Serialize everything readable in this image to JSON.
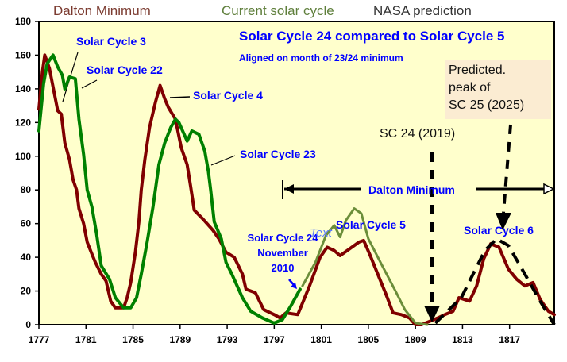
{
  "legend": {
    "dalton": {
      "label": "Dalton Minimum",
      "color": "#7b3b30"
    },
    "current": {
      "label": "Current solar cycle",
      "color": "#5f7f3c"
    },
    "nasa": {
      "label": "NASA prediction",
      "color": "#333333"
    }
  },
  "chart_data": {
    "type": "line",
    "title": "Solar Cycle 24 compared to Solar Cycle 5",
    "subtitle": "Aligned on month of 23/24 minimum",
    "xlabel": "",
    "ylabel": "",
    "xlim": [
      1777,
      1820.8
    ],
    "ylim": [
      0,
      180
    ],
    "x_ticks": [
      "1777",
      "1781",
      "1785",
      "1789",
      "1793",
      "1797",
      "1801",
      "1805",
      "1809",
      "1813",
      "1817"
    ],
    "y_ticks": [
      "0",
      "20",
      "40",
      "60",
      "80",
      "100",
      "120",
      "140",
      "160",
      "180"
    ],
    "grid": false,
    "series": [
      {
        "name": "Dalton Minimum",
        "color": "#800000",
        "points": [
          [
            1777.0,
            128
          ],
          [
            1777.3,
            150
          ],
          [
            1777.5,
            160
          ],
          [
            1777.9,
            152
          ],
          [
            1778.6,
            127
          ],
          [
            1778.9,
            125
          ],
          [
            1779.2,
            108
          ],
          [
            1779.6,
            98
          ],
          [
            1779.9,
            86
          ],
          [
            1780.2,
            80
          ],
          [
            1780.4,
            69
          ],
          [
            1780.8,
            60
          ],
          [
            1781.1,
            49
          ],
          [
            1781.5,
            42
          ],
          [
            1781.8,
            37
          ],
          [
            1782.3,
            30
          ],
          [
            1782.7,
            26
          ],
          [
            1783.1,
            14
          ],
          [
            1783.5,
            10
          ],
          [
            1784.2,
            10
          ],
          [
            1784.5,
            16
          ],
          [
            1784.8,
            25
          ],
          [
            1785.2,
            43
          ],
          [
            1785.5,
            61
          ],
          [
            1785.7,
            80
          ],
          [
            1786.0,
            98
          ],
          [
            1786.4,
            117
          ],
          [
            1786.9,
            132
          ],
          [
            1787.3,
            142
          ],
          [
            1787.7,
            134
          ],
          [
            1788.0,
            129
          ],
          [
            1788.6,
            122
          ],
          [
            1789.1,
            105
          ],
          [
            1789.6,
            95
          ],
          [
            1789.9,
            82
          ],
          [
            1790.2,
            68
          ],
          [
            1790.9,
            63
          ],
          [
            1791.8,
            56
          ],
          [
            1792.3,
            51
          ],
          [
            1792.9,
            43
          ],
          [
            1793.6,
            40
          ],
          [
            1794.3,
            30
          ],
          [
            1794.6,
            21
          ],
          [
            1795.4,
            19
          ],
          [
            1796.1,
            9
          ],
          [
            1797.0,
            6
          ],
          [
            1797.5,
            4
          ],
          [
            1798.0,
            7
          ],
          [
            1799.0,
            6
          ],
          [
            1800.0,
            23
          ],
          [
            1800.9,
            40
          ],
          [
            1801.5,
            46
          ],
          [
            1802.1,
            44
          ],
          [
            1802.6,
            41
          ],
          [
            1803.4,
            45
          ],
          [
            1804.2,
            49
          ],
          [
            1804.6,
            50
          ],
          [
            1805.1,
            42
          ],
          [
            1805.8,
            30
          ],
          [
            1806.5,
            18
          ],
          [
            1807.1,
            7
          ],
          [
            1807.8,
            6
          ],
          [
            1808.5,
            4
          ],
          [
            1809.0,
            0
          ],
          [
            1809.5,
            0
          ],
          [
            1810.2,
            2
          ],
          [
            1810.9,
            4
          ],
          [
            1811.5,
            6
          ],
          [
            1812.2,
            8
          ],
          [
            1812.7,
            16
          ],
          [
            1813.6,
            14
          ],
          [
            1814.2,
            23
          ],
          [
            1814.8,
            39
          ],
          [
            1815.4,
            48
          ],
          [
            1816.1,
            46
          ],
          [
            1816.9,
            33
          ],
          [
            1817.6,
            27
          ],
          [
            1818.3,
            23
          ],
          [
            1819.0,
            25
          ],
          [
            1819.6,
            15
          ],
          [
            1820.3,
            8
          ],
          [
            1820.8,
            6
          ]
        ]
      },
      {
        "name": "",
        "color": "#008000",
        "points": [
          [
            1777.0,
            115
          ],
          [
            1777.4,
            143
          ],
          [
            1777.7,
            155
          ],
          [
            1778.2,
            160
          ],
          [
            1778.6,
            153
          ],
          [
            1779.0,
            148
          ],
          [
            1779.2,
            140
          ],
          [
            1779.6,
            147
          ],
          [
            1780.1,
            146
          ],
          [
            1780.4,
            122
          ],
          [
            1780.8,
            101
          ],
          [
            1781.1,
            80
          ],
          [
            1781.5,
            70
          ],
          [
            1781.9,
            54
          ],
          [
            1782.3,
            35
          ],
          [
            1783.0,
            27
          ],
          [
            1783.5,
            16
          ],
          [
            1784.2,
            10
          ],
          [
            1784.8,
            10
          ],
          [
            1785.3,
            16
          ],
          [
            1785.7,
            30
          ],
          [
            1786.2,
            49
          ],
          [
            1786.7,
            70
          ],
          [
            1787.2,
            95
          ],
          [
            1787.7,
            108
          ],
          [
            1788.2,
            117
          ],
          [
            1788.6,
            122
          ],
          [
            1788.9,
            120
          ],
          [
            1789.6,
            109
          ],
          [
            1790.0,
            115
          ],
          [
            1790.6,
            113
          ],
          [
            1791.1,
            103
          ],
          [
            1791.4,
            91
          ],
          [
            1791.6,
            80
          ],
          [
            1791.9,
            61
          ],
          [
            1792.5,
            51
          ],
          [
            1792.9,
            37
          ],
          [
            1793.4,
            30
          ],
          [
            1794.3,
            16
          ],
          [
            1795.0,
            8
          ],
          [
            1796.0,
            4
          ],
          [
            1797.0,
            1
          ],
          [
            1797.7,
            3
          ],
          [
            1798.4,
            11
          ],
          [
            1799.2,
            21
          ]
        ]
      },
      {
        "name": "Current solar cycle",
        "color": "#6b8e3a",
        "points": [
          [
            1799.4,
            23
          ],
          [
            1800.5,
            37
          ],
          [
            1801.4,
            53
          ],
          [
            1802.1,
            59
          ],
          [
            1802.6,
            52
          ],
          [
            1803.1,
            62
          ],
          [
            1803.8,
            69
          ],
          [
            1804.4,
            66
          ],
          [
            1805.0,
            51
          ],
          [
            1806.1,
            36
          ],
          [
            1807.3,
            20
          ],
          [
            1808.1,
            9
          ],
          [
            1809.0,
            1
          ],
          [
            1810.0,
            0
          ]
        ]
      },
      {
        "name": "NASA prediction",
        "color": "#000000",
        "dashed": true,
        "points": [
          [
            1810.7,
            1
          ],
          [
            1812.9,
            16
          ],
          [
            1814.9,
            44
          ],
          [
            1815.9,
            51
          ],
          [
            1816.9,
            47
          ],
          [
            1818.3,
            30
          ],
          [
            1819.6,
            14
          ],
          [
            1820.8,
            0
          ]
        ]
      }
    ],
    "annotations": {
      "sc3": "Solar Cycle 3",
      "sc22": "Solar Cycle 22",
      "sc4": "Solar Cycle 4",
      "sc23": "Solar Cycle 23",
      "sc24": "Solar Cycle 24",
      "sc24_date": "November",
      "sc24_year": "2010",
      "text_placeholder": "Text",
      "sc5": "Solar Cycle 5",
      "sc6": "Solar Cycle 6",
      "dalton_range": "Dalton Minimum",
      "sc24_peak": "SC 24 (2019)",
      "pred_line1": "Predicted.",
      "pred_line2": "peak of",
      "pred_line3": "SC 25 (2025)"
    }
  }
}
